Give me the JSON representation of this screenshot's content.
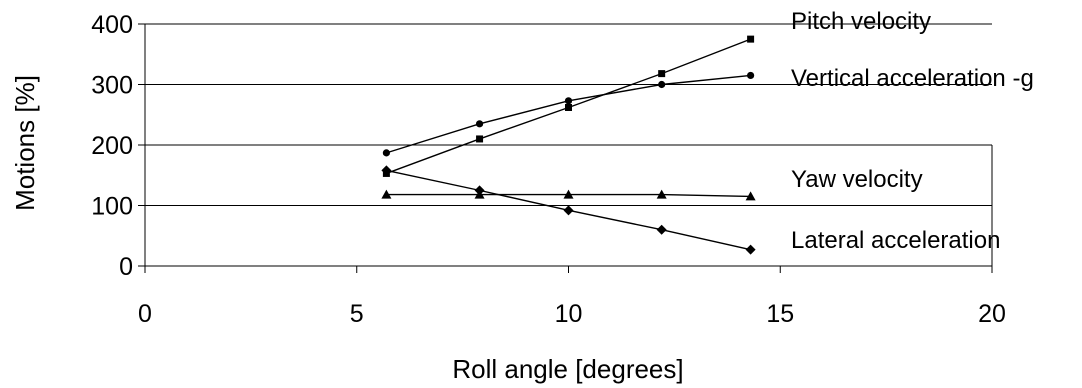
{
  "chart_data": {
    "type": "line",
    "xlabel": "Roll angle [degrees]",
    "ylabel": "Motions [%]",
    "xlim": [
      0,
      20
    ],
    "ylim": [
      0,
      400
    ],
    "xticks": [
      "0",
      "5",
      "10",
      "15",
      "20"
    ],
    "yticks": [
      "0",
      "100",
      "200",
      "300",
      "400"
    ],
    "grid": "horizontal",
    "legend": "series labels placed at right of plot",
    "series": [
      {
        "name": "Pitch velocity",
        "marker": "square",
        "x": [
          5.7,
          7.9,
          10.0,
          12.2,
          14.3
        ],
        "y": [
          153,
          210,
          262,
          318,
          375
        ]
      },
      {
        "name": "Vertical acceleration -g",
        "marker": "circle",
        "x": [
          5.7,
          7.9,
          10.0,
          12.2,
          14.3
        ],
        "y": [
          187,
          235,
          273,
          300,
          315
        ]
      },
      {
        "name": "Yaw velocity",
        "marker": "triangle",
        "x": [
          5.7,
          7.9,
          10.0,
          12.2,
          14.3
        ],
        "y": [
          118,
          118,
          118,
          118,
          115
        ]
      },
      {
        "name": "Lateral acceleration",
        "marker": "diamond",
        "x": [
          5.7,
          7.9,
          10.0,
          12.2,
          14.3
        ],
        "y": [
          158,
          125,
          92,
          60,
          27
        ]
      }
    ]
  }
}
